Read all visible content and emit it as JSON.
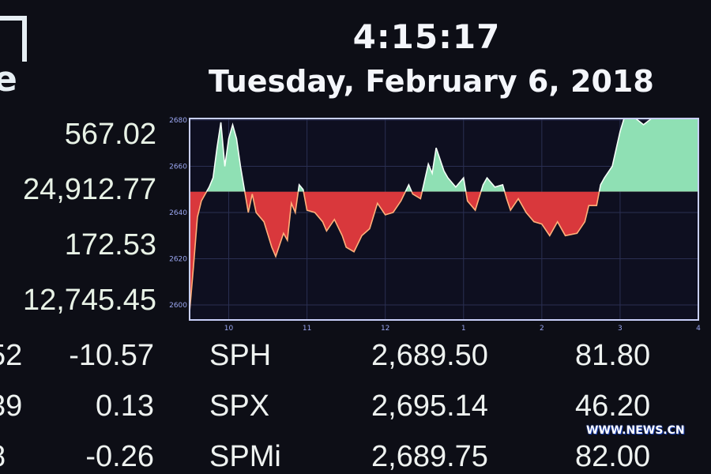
{
  "header": {
    "time": "4:15:17",
    "date": "Tuesday, February 6, 2018",
    "logo_text": "e"
  },
  "left_values": [
    "567.02",
    "24,912.77",
    "172.53",
    "12,745.45"
  ],
  "rows": [
    {
      "partial": "52",
      "change": "-10.57",
      "symbol": "SPH",
      "price": "2,689.50",
      "volume": "81.80",
      "negative": true
    },
    {
      "partial": "39",
      "change": "0.13",
      "symbol": "SPX",
      "price": "2,695.14",
      "volume": "46.20",
      "negative": false
    },
    {
      "partial": "8",
      "change": "-0.26",
      "symbol": "SPMi",
      "price": "2,689.75",
      "volume": "82.00",
      "negative": true
    }
  ],
  "watermark": "WWW.NEWS.CN",
  "colors": {
    "up_fill": "#8fe0b4",
    "down_fill": "#d9383c",
    "up_line": "#f5fff8",
    "down_line": "#ffb07a",
    "frame": "#c8cff8",
    "grid": "#2a2f52"
  },
  "chart_data": {
    "type": "area",
    "baseline": 2649,
    "ylim": [
      2595,
      2682
    ],
    "xlim": [
      9.5,
      16
    ],
    "yticks": [
      2600,
      2620,
      2640,
      2660,
      2680
    ],
    "xticks": [
      {
        "v": 10,
        "label": "10"
      },
      {
        "v": 11,
        "label": "11"
      },
      {
        "v": 12,
        "label": "12"
      },
      {
        "v": 13,
        "label": "1"
      },
      {
        "v": 14,
        "label": "2"
      },
      {
        "v": 15,
        "label": "3"
      },
      {
        "v": 16,
        "label": "4"
      }
    ],
    "grid": true,
    "x": [
      9.5,
      9.55,
      9.6,
      9.65,
      9.7,
      9.75,
      9.8,
      9.85,
      9.9,
      9.95,
      10.0,
      10.05,
      10.1,
      10.15,
      10.25,
      10.3,
      10.35,
      10.45,
      10.55,
      10.6,
      10.7,
      10.75,
      10.8,
      10.85,
      10.9,
      10.95,
      11.0,
      11.1,
      11.2,
      11.25,
      11.35,
      11.45,
      11.5,
      11.6,
      11.7,
      11.8,
      11.9,
      12.0,
      12.1,
      12.2,
      12.3,
      12.35,
      12.45,
      12.55,
      12.6,
      12.65,
      12.75,
      12.8,
      12.9,
      13.0,
      13.05,
      13.15,
      13.25,
      13.3,
      13.4,
      13.5,
      13.55,
      13.6,
      13.7,
      13.8,
      13.9,
      14.0,
      14.1,
      14.2,
      14.3,
      14.45,
      14.55,
      14.6,
      14.7,
      14.75,
      14.8,
      14.9,
      15.0,
      15.05,
      15.2,
      15.3,
      15.4,
      15.6,
      15.8,
      16.0
    ],
    "y": [
      2597,
      2617,
      2638,
      2645,
      2648,
      2651,
      2655,
      2668,
      2679,
      2660,
      2672,
      2678,
      2672,
      2660,
      2640,
      2648,
      2640,
      2636,
      2625,
      2621,
      2631,
      2628,
      2644,
      2640,
      2652,
      2650,
      2641,
      2640,
      2636,
      2632,
      2637,
      2630,
      2625,
      2623,
      2630,
      2633,
      2644,
      2639,
      2640,
      2645,
      2652,
      2648,
      2646,
      2661,
      2657,
      2668,
      2658,
      2655,
      2651,
      2655,
      2645,
      2641,
      2652,
      2655,
      2651,
      2652,
      2646,
      2641,
      2646,
      2640,
      2636,
      2635,
      2630,
      2636,
      2630,
      2631,
      2636,
      2643,
      2643,
      2652,
      2655,
      2660,
      2675,
      2682,
      2682,
      2678,
      2682,
      2682,
      2681,
      2682
    ]
  }
}
